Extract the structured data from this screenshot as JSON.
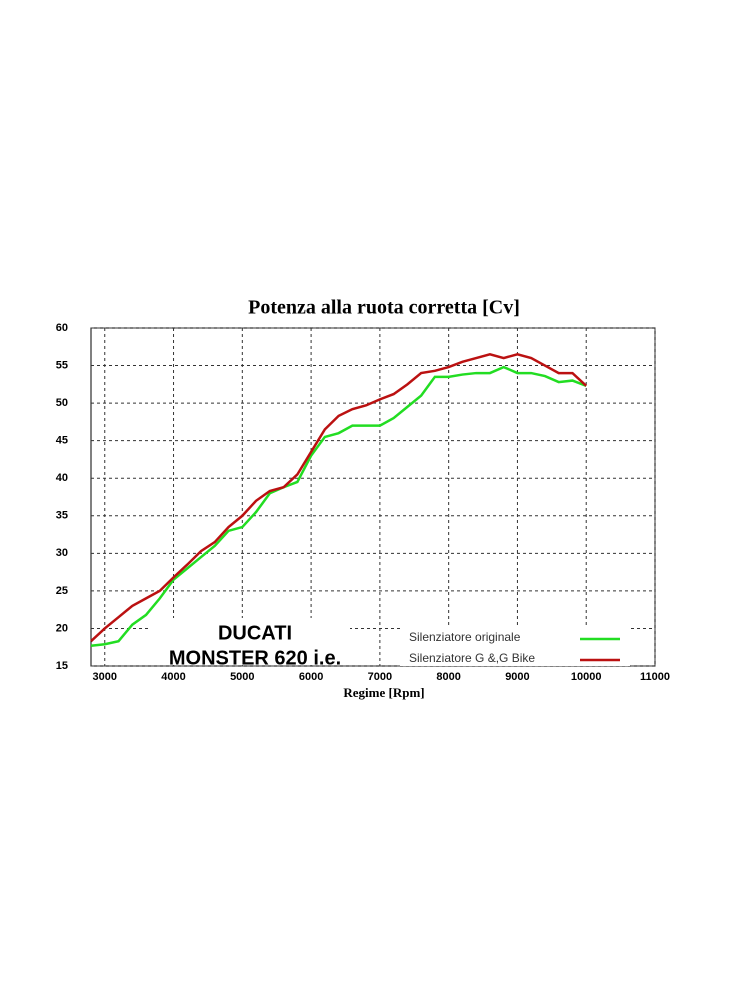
{
  "chart_data": {
    "type": "line",
    "title": "Potenza alla ruota corretta [Cv]",
    "x_label": "Regime [Rpm]",
    "annotations": [
      "DUCATI",
      "MONSTER 620 i.e."
    ],
    "x": [
      2800,
      3000,
      3200,
      3400,
      3600,
      3800,
      4000,
      4200,
      4400,
      4600,
      4800,
      5000,
      5200,
      5400,
      5600,
      5800,
      6000,
      6200,
      6400,
      6600,
      6800,
      7000,
      7200,
      7400,
      7600,
      7800,
      8000,
      8200,
      8400,
      8600,
      8800,
      9000,
      9200,
      9400,
      9600,
      9800,
      10000
    ],
    "series": [
      {
        "name": "Silenziatore originale",
        "color": "#22dd22",
        "values": [
          17.7,
          17.9,
          18.3,
          20.5,
          21.8,
          24,
          26.5,
          28,
          29.5,
          31,
          33,
          33.5,
          35.5,
          38,
          38.8,
          39.5,
          43,
          45.5,
          46,
          47,
          47,
          47,
          48,
          49.5,
          51,
          53.5,
          53.5,
          53.8,
          54,
          54,
          54.8,
          54,
          54,
          53.6,
          52.8,
          53,
          52.3
        ]
      },
      {
        "name": "Silenziatore G &,G Bike",
        "color": "#bb1111",
        "values": [
          18.3,
          20,
          21.5,
          23,
          24,
          25,
          26.8,
          28.5,
          30.3,
          31.5,
          33.5,
          35,
          37,
          38.3,
          38.8,
          40.5,
          43.5,
          46.5,
          48.3,
          49.2,
          49.7,
          50.5,
          51.2,
          52.5,
          54,
          54.3,
          54.8,
          55.5,
          56,
          56.5,
          56,
          56.5,
          56,
          55,
          54,
          54,
          52.3
        ]
      }
    ],
    "xlim": [
      2800,
      11000
    ],
    "xticks": [
      3000,
      4000,
      5000,
      6000,
      7000,
      8000,
      9000,
      10000,
      11000
    ],
    "ylim": [
      15,
      60
    ],
    "yticks": [
      15,
      20,
      25,
      30,
      35,
      40,
      45,
      50,
      55,
      60
    ],
    "grid": true,
    "legend": "lower right"
  }
}
